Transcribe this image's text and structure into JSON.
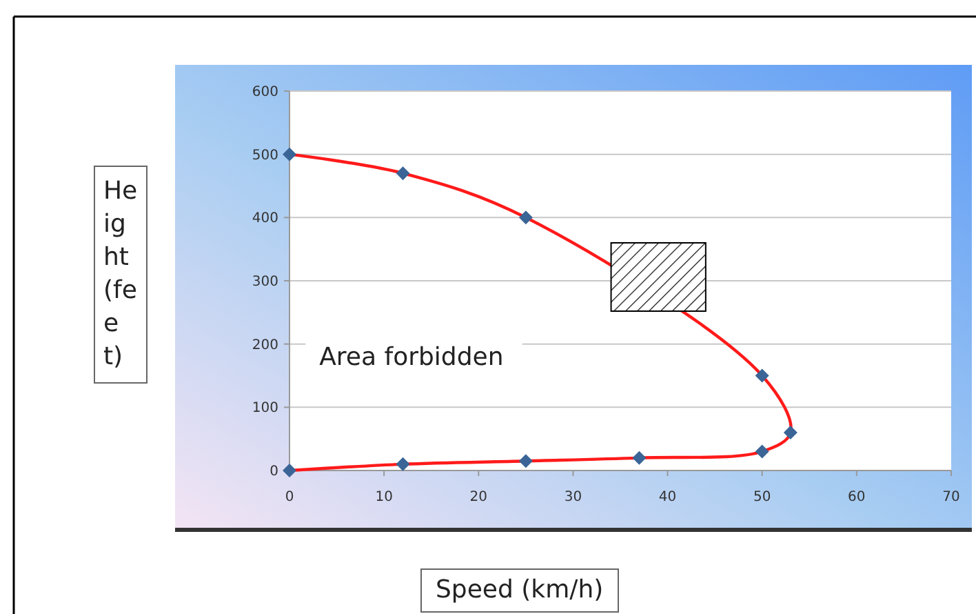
{
  "chart_data": {
    "type": "line",
    "xlabel": "Speed (km/h)",
    "ylabel": "Height (feet)",
    "annotations": [
      "Area forbidden"
    ],
    "xlim": [
      0,
      70
    ],
    "xticks": [
      0,
      10,
      20,
      30,
      40,
      50,
      60,
      70
    ],
    "ylim": [
      0,
      600
    ],
    "yticks": [
      0,
      100,
      200,
      300,
      400,
      500,
      600
    ],
    "grid": "y",
    "series": [
      {
        "type": "line",
        "color": "#ff1a1a",
        "marker": "none",
        "x": [
          0,
          12,
          25,
          50,
          53,
          50,
          37,
          25,
          12,
          0
        ],
        "values": [
          500,
          470,
          400,
          150,
          60,
          30,
          20,
          15,
          10,
          0
        ]
      },
      {
        "type": "scatter",
        "color": "#3a6596",
        "marker": "diamond",
        "x": [
          0,
          12,
          25,
          50,
          53,
          50,
          37,
          25,
          12,
          0
        ],
        "values": [
          500,
          470,
          400,
          150,
          60,
          30,
          20,
          15,
          10,
          0
        ]
      }
    ]
  }
}
